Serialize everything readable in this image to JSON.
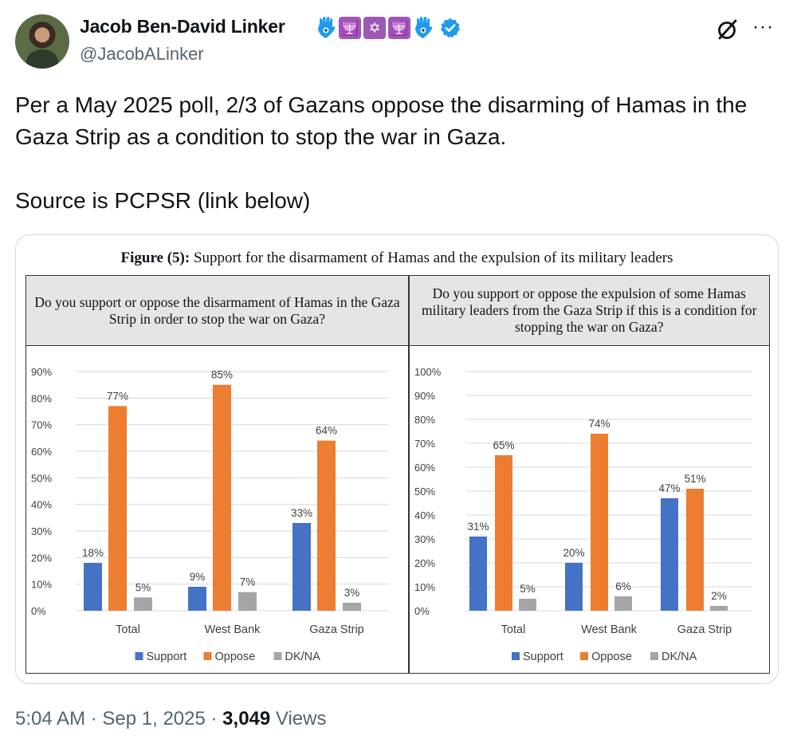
{
  "author": {
    "name": "Jacob Ben-David Linker",
    "handle": "@JacobALinker",
    "menorah_glyph": "🕎",
    "star_glyph": "✡",
    "more_glyph": "···"
  },
  "tweet": {
    "line1": "Per a May 2025 poll, 2/3 of Gazans oppose the disarming of Hamas in the Gaza Strip as a condition to stop the war in Gaza.",
    "line2": "Source is PCPSR (link below)"
  },
  "figure": {
    "title_bold": "Figure (5):",
    "title_rest": " Support for the disarmament of Hamas and the expulsion of its military leaders"
  },
  "colors": {
    "support": "#4472c4",
    "oppose": "#ed7d31",
    "dkna": "#a5a5a5",
    "accent": "#1d9bf0"
  },
  "chart_data": [
    {
      "type": "bar",
      "question": "Do you support or oppose the disarmament of Hamas in the Gaza Strip in order to stop the war on Gaza?",
      "categories": [
        "Total",
        "West Bank",
        "Gaza Strip"
      ],
      "series": [
        {
          "name": "Support",
          "values": [
            18,
            9,
            33
          ]
        },
        {
          "name": "Oppose",
          "values": [
            77,
            85,
            64
          ]
        },
        {
          "name": "DK/NA",
          "values": [
            5,
            7,
            3
          ]
        }
      ],
      "ylim": [
        0,
        90
      ],
      "yticks": [
        0,
        10,
        20,
        30,
        40,
        50,
        60,
        70,
        80,
        90
      ],
      "legend": "bottom",
      "grid": true
    },
    {
      "type": "bar",
      "question": "Do you support or oppose the expulsion of some Hamas military leaders from the Gaza Strip if this is a condition for stopping the war on Gaza?",
      "categories": [
        "Total",
        "West Bank",
        "Gaza Strip"
      ],
      "series": [
        {
          "name": "Support",
          "values": [
            31,
            20,
            47
          ]
        },
        {
          "name": "Oppose",
          "values": [
            65,
            74,
            51
          ]
        },
        {
          "name": "DK/NA",
          "values": [
            5,
            6,
            2
          ]
        }
      ],
      "ylim": [
        0,
        100
      ],
      "yticks": [
        0,
        10,
        20,
        30,
        40,
        50,
        60,
        70,
        80,
        90,
        100
      ],
      "legend": "bottom",
      "grid": true
    }
  ],
  "meta": {
    "time": "5:04 AM",
    "sep": " · ",
    "date": "Sep 1, 2025",
    "sep2": " · ",
    "views_count": "3,049",
    "views_label": " Views"
  }
}
